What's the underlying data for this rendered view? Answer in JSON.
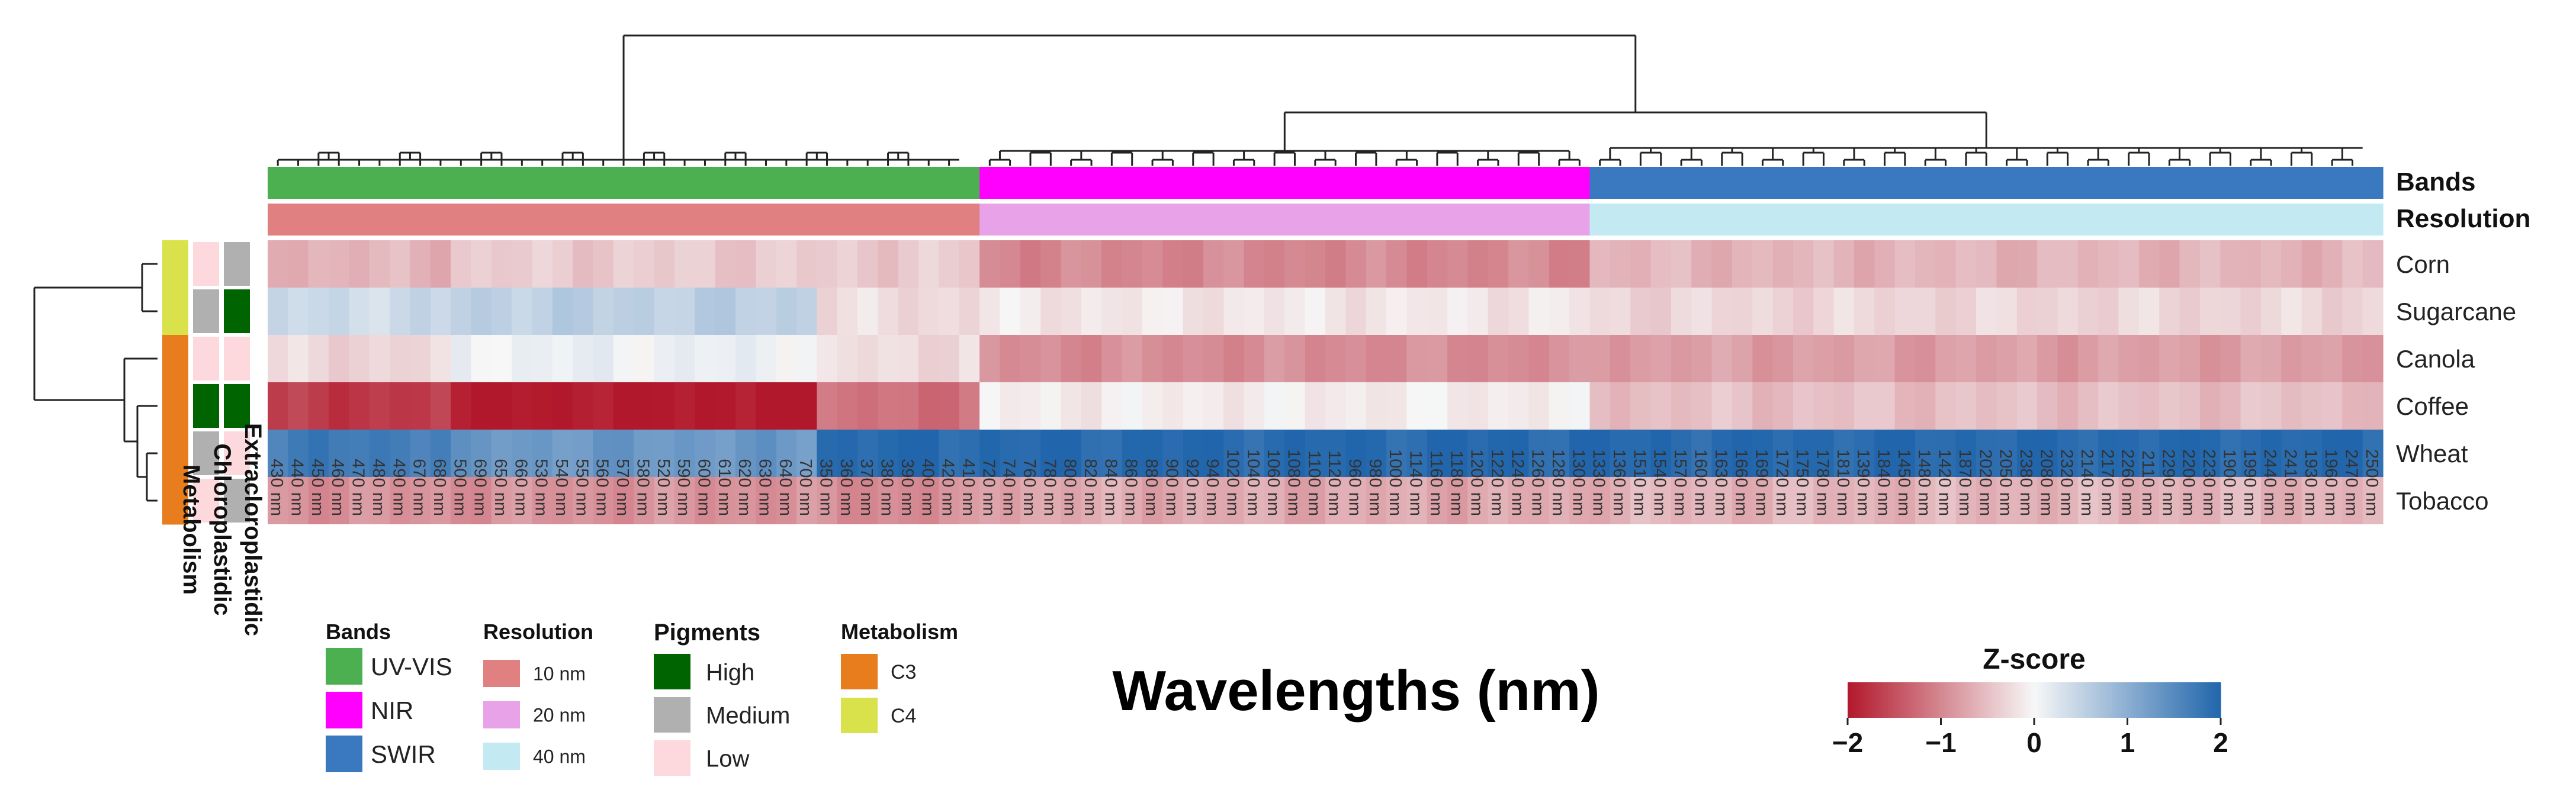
{
  "chart_data": {
    "type": "heatmap",
    "xlabel": "Wavelengths (nm)",
    "rows": [
      "Corn",
      "Sugarcane",
      "Canola",
      "Coffee",
      "Wheat",
      "Tobacco"
    ],
    "columns": [
      "430 nm",
      "440 nm",
      "450 nm",
      "460 nm",
      "470 nm",
      "480 nm",
      "490 nm",
      "670 nm",
      "680 nm",
      "500 nm",
      "690 nm",
      "650 nm",
      "660 nm",
      "530 nm",
      "540 nm",
      "550 nm",
      "560 nm",
      "570 nm",
      "580 nm",
      "520 nm",
      "590 nm",
      "600 nm",
      "610 nm",
      "620 nm",
      "630 nm",
      "640 nm",
      "700 nm",
      "350 nm",
      "360 nm",
      "370 nm",
      "380 nm",
      "390 nm",
      "400 nm",
      "420 nm",
      "410 nm",
      "720 nm",
      "740 nm",
      "760 nm",
      "780 nm",
      "800 nm",
      "820 nm",
      "840 nm",
      "860 nm",
      "880 nm",
      "900 nm",
      "920 nm",
      "940 nm",
      "1020 nm",
      "1040 nm",
      "1060 nm",
      "1080 nm",
      "1100 nm",
      "1120 nm",
      "960 nm",
      "980 nm",
      "1000 nm",
      "1140 nm",
      "1160 nm",
      "1180 nm",
      "1200 nm",
      "1220 nm",
      "1240 nm",
      "1260 nm",
      "1280 nm",
      "1300 nm",
      "1330 nm",
      "1360 nm",
      "1510 nm",
      "1540 nm",
      "1570 nm",
      "1600 nm",
      "1630 nm",
      "1660 nm",
      "1690 nm",
      "1720 nm",
      "1750 nm",
      "1780 nm",
      "1810 nm",
      "1390 nm",
      "1840 nm",
      "1450 nm",
      "1480 nm",
      "1420 nm",
      "1870 nm",
      "2020 nm",
      "2050 nm",
      "2380 nm",
      "2080 nm",
      "2320 nm",
      "2140 nm",
      "2170 nm",
      "2260 nm",
      "2110 nm",
      "2290 nm",
      "2200 nm",
      "2230 nm",
      "1900 nm",
      "1990 nm",
      "2440 nm",
      "2410 nm",
      "1930 nm",
      "1960 nm",
      "2470 nm",
      "2500 nm"
    ],
    "column_bands": {
      "UV-VIS": 35,
      "NIR": 30,
      "SWIR": 39
    },
    "row_annotations": {
      "Metabolism": [
        "C4",
        "C4",
        "C3",
        "C3",
        "C3",
        "C3"
      ],
      "Chloroplastidic": [
        "Low",
        "Medium",
        "Low",
        "High",
        "Medium",
        "Low"
      ],
      "Extracloroplastidic": [
        "Medium",
        "High",
        "Low",
        "High",
        "Low",
        "Medium"
      ]
    },
    "column_annotation_labels": [
      "Bands",
      "Resolution"
    ],
    "row_annotation_labels": [
      "Metabolism",
      "Chloroplastidic",
      "Extracloroplastidic"
    ],
    "zscore_by_region": {
      "Corn": {
        "uvvis_a": -0.6,
        "uvvis_b": -0.4,
        "uv": -0.4,
        "nir": -1.0,
        "swir": -0.6
      },
      "Sugarcane": {
        "uvvis_a": 0.4,
        "uvvis_b": 0.55,
        "uv": -0.25,
        "nir": -0.15,
        "swir": -0.3
      },
      "Canola": {
        "uvvis_a": -0.3,
        "uvvis_b": 0.1,
        "uv": -0.25,
        "nir": -0.95,
        "swir": -0.8
      },
      "Coffee": {
        "uvvis_a": -1.7,
        "uvvis_b": -2.0,
        "uv": -1.2,
        "nir": -0.1,
        "swir": -0.5
      },
      "Wheat": {
        "uvvis_a": 1.7,
        "uvvis_b": 1.3,
        "uv": 1.95,
        "nir": 1.95,
        "swir": 1.95
      },
      "Tobacco": {
        "uvvis_a": -0.9,
        "uvvis_b": -0.9,
        "uv": -0.95,
        "nir": -0.7,
        "swir": -0.6
      }
    },
    "colorbar": {
      "title": "Z-score",
      "ticks": [
        "−2",
        "−1",
        "0",
        "1",
        "2"
      ],
      "range": [
        -2,
        2
      ]
    },
    "legend": {
      "bands": {
        "title": "Bands",
        "items": [
          {
            "label": "UV-VIS",
            "color": "#4caf50"
          },
          {
            "label": "NIR",
            "color": "#ff00ff"
          },
          {
            "label": "SWIR",
            "color": "#3a78bf"
          }
        ]
      },
      "resolution": {
        "title": "Resolution",
        "items": [
          {
            "label": "10 nm",
            "color": "#e08080"
          },
          {
            "label": "20 nm",
            "color": "#e8a3e8"
          },
          {
            "label": "40 nm",
            "color": "#c3eaf3"
          }
        ]
      },
      "pigments": {
        "title": "Pigments",
        "items": [
          {
            "label": "High",
            "color": "#006400"
          },
          {
            "label": "Medium",
            "color": "#b0b0b0"
          },
          {
            "label": "Low",
            "color": "#fdd8dc"
          }
        ]
      },
      "metabolism": {
        "title": "Metabolism",
        "items": [
          {
            "label": "C3",
            "color": "#e87d1e"
          },
          {
            "label": "C4",
            "color": "#d9e24a"
          }
        ]
      }
    },
    "colors": {
      "uvvis": "#4caf50",
      "nir": "#ff00ff",
      "swir": "#3a78bf",
      "res10": "#e08080",
      "res20": "#e8a3e8",
      "res40": "#c3eaf3",
      "high": "#006400",
      "medium": "#b0b0b0",
      "low": "#fdd8dc",
      "c3": "#e87d1e",
      "c4": "#d9e24a",
      "neg2": "#b2182b",
      "zero": "#f7f7f7",
      "pos2": "#2166ac"
    }
  }
}
